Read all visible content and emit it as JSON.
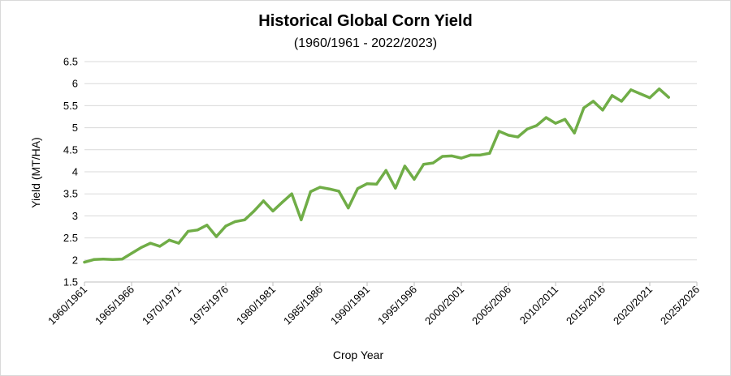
{
  "chart_data": {
    "type": "line",
    "title": "Historical Global Corn Yield",
    "subtitle": "(1960/1961 - 2022/2023)",
    "xlabel": "Crop Year",
    "ylabel": "Yield  (MT/HA)",
    "ylim": [
      1.5,
      6.5
    ],
    "yticks": [
      1.5,
      2,
      2.5,
      3,
      3.5,
      4,
      4.5,
      5,
      5.5,
      6,
      6.5
    ],
    "xlim": [
      1960,
      2025
    ],
    "xticks": [
      {
        "year": 1960,
        "label": "1960/1961"
      },
      {
        "year": 1965,
        "label": "1965/1966"
      },
      {
        "year": 1970,
        "label": "1970/1971"
      },
      {
        "year": 1975,
        "label": "1975/1976"
      },
      {
        "year": 1980,
        "label": "1980/1981"
      },
      {
        "year": 1985,
        "label": "1985/1986"
      },
      {
        "year": 1990,
        "label": "1990/1991"
      },
      {
        "year": 1995,
        "label": "1995/1996"
      },
      {
        "year": 2000,
        "label": "2000/2001"
      },
      {
        "year": 2005,
        "label": "2005/2006"
      },
      {
        "year": 2010,
        "label": "2010/2011"
      },
      {
        "year": 2015,
        "label": "2015/2016"
      },
      {
        "year": 2020,
        "label": "2020/2021"
      },
      {
        "year": 2025,
        "label": "2025/2026"
      }
    ],
    "grid": "horizontal",
    "line_color": "#70ad47",
    "x": [
      1960,
      1961,
      1962,
      1963,
      1964,
      1965,
      1966,
      1967,
      1968,
      1969,
      1970,
      1971,
      1972,
      1973,
      1974,
      1975,
      1976,
      1977,
      1978,
      1979,
      1980,
      1981,
      1982,
      1983,
      1984,
      1985,
      1986,
      1987,
      1988,
      1989,
      1990,
      1991,
      1992,
      1993,
      1994,
      1995,
      1996,
      1997,
      1998,
      1999,
      2000,
      2001,
      2002,
      2003,
      2004,
      2005,
      2006,
      2007,
      2008,
      2009,
      2010,
      2011,
      2012,
      2013,
      2014,
      2015,
      2016,
      2017,
      2018,
      2019,
      2020,
      2021,
      2022
    ],
    "y": [
      1.95,
      2.01,
      2.02,
      2.01,
      2.02,
      2.15,
      2.28,
      2.38,
      2.31,
      2.45,
      2.38,
      2.65,
      2.68,
      2.79,
      2.53,
      2.77,
      2.87,
      2.91,
      3.11,
      3.34,
      3.11,
      3.31,
      3.5,
      2.91,
      3.55,
      3.65,
      3.61,
      3.56,
      3.18,
      3.62,
      3.73,
      3.72,
      4.03,
      3.63,
      4.13,
      3.83,
      4.17,
      4.2,
      4.35,
      4.36,
      4.31,
      4.38,
      4.38,
      4.42,
      4.92,
      4.83,
      4.79,
      4.97,
      5.05,
      5.23,
      5.1,
      5.19,
      4.88,
      5.45,
      5.6,
      5.4,
      5.73,
      5.6,
      5.86,
      5.77,
      5.68,
      5.88,
      5.69
    ]
  }
}
